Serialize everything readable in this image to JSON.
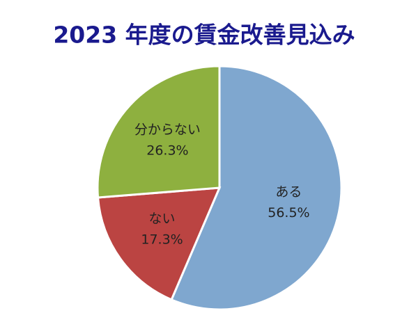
{
  "chart_data": {
    "type": "pie",
    "title": "2023 年度の賃金改善見込み",
    "categories": [
      "ある",
      "ない",
      "分からない"
    ],
    "values": [
      56.5,
      17.3,
      26.3
    ],
    "value_labels": [
      "56.5%",
      "17.3%",
      "26.3%"
    ],
    "colors": [
      "#7fa7cf",
      "#bb4442",
      "#8eb03f"
    ]
  }
}
